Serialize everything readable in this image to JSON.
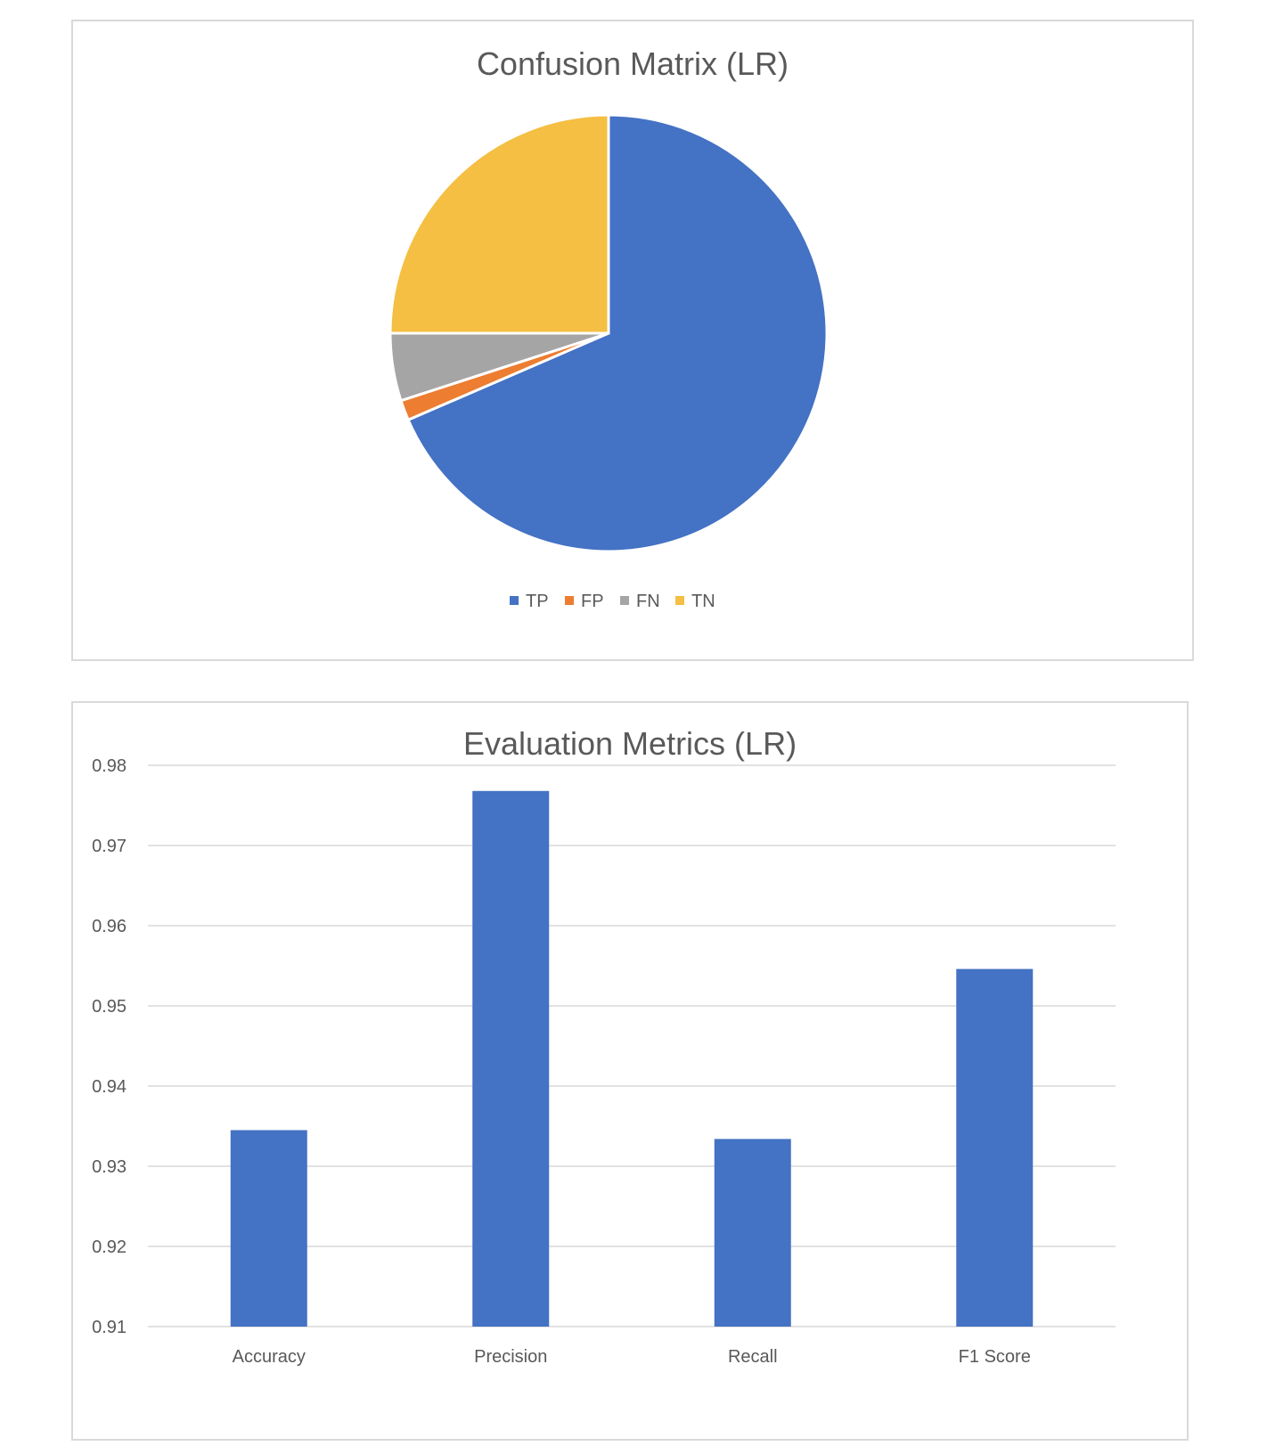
{
  "chart_data": [
    {
      "type": "pie",
      "title": "Confusion Matrix (LR)",
      "slices": [
        {
          "label": "TP",
          "value": 68.5,
          "color": "#4472C4"
        },
        {
          "label": "FP",
          "value": 1.5,
          "color": "#ED7D31"
        },
        {
          "label": "FN",
          "value": 5.0,
          "color": "#A5A5A5"
        },
        {
          "label": "TN",
          "value": 25.0,
          "color": "#F4BF42"
        }
      ],
      "legend": [
        "TP",
        "FP",
        "FN",
        "TN"
      ],
      "legend_position": "bottom"
    },
    {
      "type": "bar",
      "title": "Evaluation Metrics (LR)",
      "categories": [
        "Accuracy",
        "Precision",
        "Recall",
        "F1 Score"
      ],
      "values": [
        0.9345,
        0.9768,
        0.9334,
        0.9546
      ],
      "ylim": [
        0.91,
        0.98
      ],
      "yticks": [
        "0.91",
        "0.92",
        "0.93",
        "0.94",
        "0.95",
        "0.96",
        "0.97",
        "0.98"
      ],
      "grid": true,
      "bar_color": "#4472C4"
    }
  ]
}
